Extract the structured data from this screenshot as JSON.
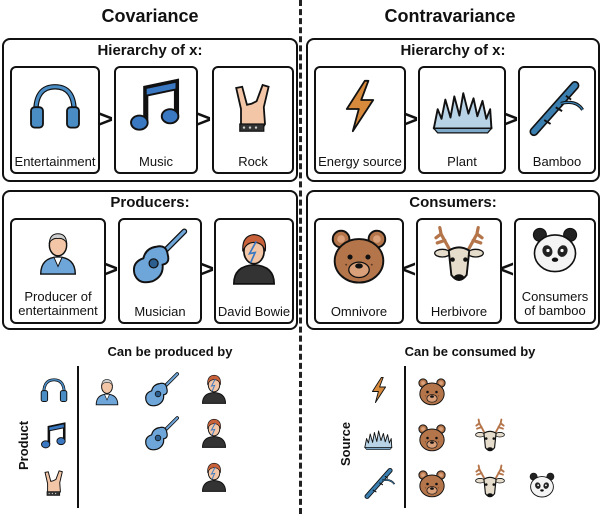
{
  "covariance": {
    "title": "Covariance",
    "hierarchy": {
      "title": "Hierarchy of x:",
      "items": [
        {
          "label": "Entertainment",
          "icon": "headphones-icon"
        },
        {
          "label": "Music",
          "icon": "music-note-icon"
        },
        {
          "label": "Rock",
          "icon": "rock-hand-icon"
        }
      ],
      "separator": ">"
    },
    "producers": {
      "title": "Producers:",
      "items": [
        {
          "label": "Producer of entertainment",
          "label_line1": "Producer of",
          "label_line2": "entertainment",
          "icon": "producer-person-icon"
        },
        {
          "label": "Musician",
          "icon": "guitar-icon"
        },
        {
          "label": "David Bowie",
          "icon": "david-bowie-icon"
        }
      ],
      "separator": ">"
    },
    "matrix": {
      "title": "Can be produced by",
      "axis_label": "Product"
    }
  },
  "contravariance": {
    "title": "Contravariance",
    "hierarchy": {
      "title": "Hierarchy of x:",
      "items": [
        {
          "label": "Energy source",
          "icon": "lightning-bolt-icon"
        },
        {
          "label": "Plant",
          "icon": "plant-icon"
        },
        {
          "label": "Bamboo",
          "icon": "bamboo-icon"
        }
      ],
      "separator": ">"
    },
    "consumers": {
      "title": "Consumers:",
      "items": [
        {
          "label": "Omnivore",
          "icon": "bear-icon"
        },
        {
          "label": "Herbivore",
          "icon": "deer-icon"
        },
        {
          "label": "Consumers of bamboo",
          "label_line1": "Consumers",
          "label_line2": "of bamboo",
          "icon": "panda-icon"
        }
      ],
      "separator": "<"
    },
    "matrix": {
      "title": "Can be consumed by",
      "axis_label": "Source"
    }
  },
  "colors": {
    "headphones": "#4a8cc4",
    "music": "#3b78c2",
    "guitar": "#6ea6da",
    "bolt": "#d78a3c",
    "bear": "#b5754a",
    "plant": "#b9d3e6",
    "bamboo": "#3a7fb0"
  }
}
